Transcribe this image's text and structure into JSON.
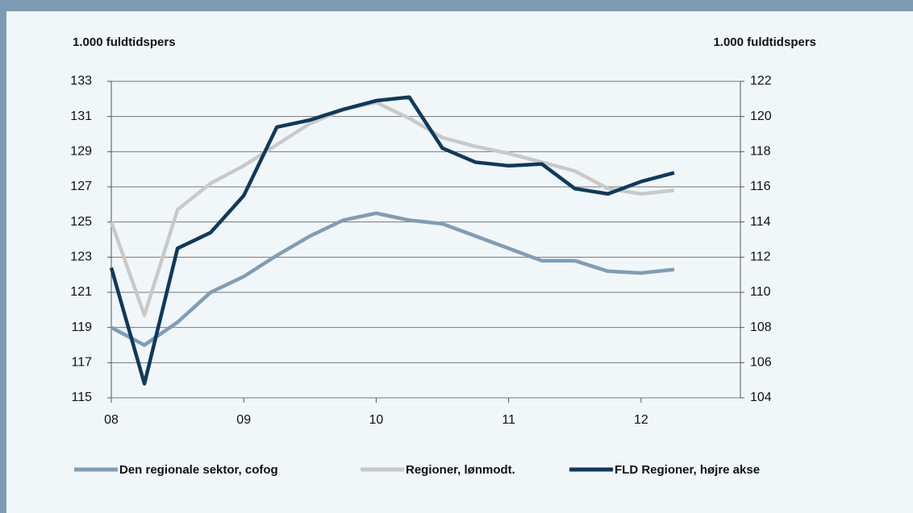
{
  "chart_data": {
    "type": "line",
    "y_label": "1.000 fuldtidspers",
    "y2_label": "1.000 fuldtidspers",
    "x": [
      2008,
      2008.25,
      2008.5,
      2008.75,
      2009,
      2009.25,
      2009.5,
      2009.75,
      2010,
      2010.25,
      2010.5,
      2010.75,
      2011,
      2011.25,
      2011.5,
      2011.75,
      2012,
      2012.25
    ],
    "xlim": [
      2008,
      2012.75
    ],
    "xticks": [
      {
        "value": 2008,
        "label": "08"
      },
      {
        "value": 2009,
        "label": "09"
      },
      {
        "value": 2010,
        "label": "10"
      },
      {
        "value": 2011,
        "label": "11"
      },
      {
        "value": 2012,
        "label": "12"
      }
    ],
    "ylim": [
      115,
      133
    ],
    "yticks": [
      115,
      117,
      119,
      121,
      123,
      125,
      127,
      129,
      131,
      133
    ],
    "y2lim": [
      104,
      122
    ],
    "y2ticks": [
      104,
      106,
      108,
      110,
      112,
      114,
      116,
      118,
      120,
      122
    ],
    "grid": true,
    "legend": "bottom",
    "series": [
      {
        "name": "Den regionale sektor, cofog",
        "color": "#7f9db5",
        "values": [
          119.0,
          118.0,
          119.3,
          121.0,
          121.9,
          123.1,
          124.2,
          125.1,
          125.5,
          125.1,
          124.9,
          124.2,
          123.5,
          122.8,
          122.8,
          122.2,
          122.1,
          122.3
        ]
      },
      {
        "name": "Regioner, lønmodt.",
        "color": "#c9c9c9",
        "values": [
          125.0,
          119.7,
          125.7,
          127.2,
          128.2,
          129.4,
          130.6,
          131.4,
          131.8,
          130.9,
          129.8,
          129.3,
          128.9,
          128.4,
          127.9,
          126.9,
          126.6,
          126.8
        ]
      },
      {
        "name": "FLD Regioner, højre akse",
        "color": "#0d3a5c",
        "axis": "y2",
        "values": [
          111.4,
          104.8,
          112.5,
          113.4,
          115.5,
          119.4,
          119.8,
          120.4,
          120.9,
          121.1,
          118.2,
          117.4,
          117.2,
          117.3,
          115.9,
          115.6,
          116.3,
          116.8
        ]
      }
    ]
  }
}
